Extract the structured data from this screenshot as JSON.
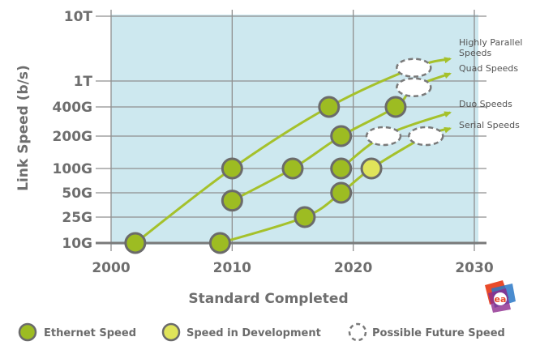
{
  "colors": {
    "plot_bg": "#cde8ef",
    "grid": "#8f8f8f",
    "axis": "#7a7a7a",
    "line": "#a5c12b",
    "ethernet": "#9dbc22",
    "development": "#e0e45a",
    "marker_edge": "#6b6b6b",
    "future_edge": "#7a7a7a"
  },
  "chart_data": {
    "type": "scatter",
    "xlabel": "Standard Completed",
    "ylabel": "Link Speed (b/s)",
    "xlim": [
      2000,
      2030
    ],
    "x_ticks": [
      "2000",
      "2010",
      "2020",
      "2030"
    ],
    "y_scale": "log",
    "y_ticks": [
      {
        "label": "10G",
        "value": 10
      },
      {
        "label": "25G",
        "value": 25
      },
      {
        "label": "50G",
        "value": 50
      },
      {
        "label": "100G",
        "value": 100
      },
      {
        "label": "200G",
        "value": 200
      },
      {
        "label": "400G",
        "value": 400
      },
      {
        "label": "1T",
        "value": 1000
      },
      {
        "label": "10T",
        "value": 10000
      }
    ],
    "grid": true,
    "legend": [
      {
        "label": "Ethernet Speed",
        "marker": "ethernet"
      },
      {
        "label": "Speed in Development",
        "marker": "development"
      },
      {
        "label": "Possible Future Speed",
        "marker": "future"
      }
    ],
    "series": [
      {
        "name": "Highly Parallel Speeds",
        "points": [
          {
            "x": 2002,
            "y": 10,
            "status": "ethernet"
          },
          {
            "x": 2010,
            "y": 100,
            "status": "ethernet"
          },
          {
            "x": 2018,
            "y": 400,
            "status": "ethernet"
          },
          {
            "x": 2025,
            "y": 1600,
            "status": "future"
          }
        ],
        "end": {
          "x": 2028,
          "y": 2200
        }
      },
      {
        "name": "Quad Speeds",
        "points": [
          {
            "x": 2010,
            "y": 40,
            "status": "ethernet"
          },
          {
            "x": 2015,
            "y": 100,
            "status": "ethernet"
          },
          {
            "x": 2019,
            "y": 200,
            "status": "ethernet"
          },
          {
            "x": 2023.5,
            "y": 400,
            "status": "ethernet"
          },
          {
            "x": 2025,
            "y": 800,
            "status": "future"
          }
        ],
        "end": {
          "x": 2028,
          "y": 1300
        }
      },
      {
        "name": "Duo Speeds",
        "points": [
          {
            "x": 2019,
            "y": 100,
            "status": "ethernet"
          },
          {
            "x": 2022.5,
            "y": 200,
            "status": "future"
          }
        ],
        "end": {
          "x": 2028,
          "y": 350
        }
      },
      {
        "name": "Serial Speeds",
        "points": [
          {
            "x": 2009,
            "y": 10,
            "status": "ethernet"
          },
          {
            "x": 2016,
            "y": 25,
            "status": "ethernet"
          },
          {
            "x": 2019,
            "y": 50,
            "status": "ethernet"
          },
          {
            "x": 2021.5,
            "y": 100,
            "status": "development"
          },
          {
            "x": 2026,
            "y": 200,
            "status": "future"
          }
        ],
        "end": {
          "x": 2028,
          "y": 240
        }
      }
    ]
  }
}
